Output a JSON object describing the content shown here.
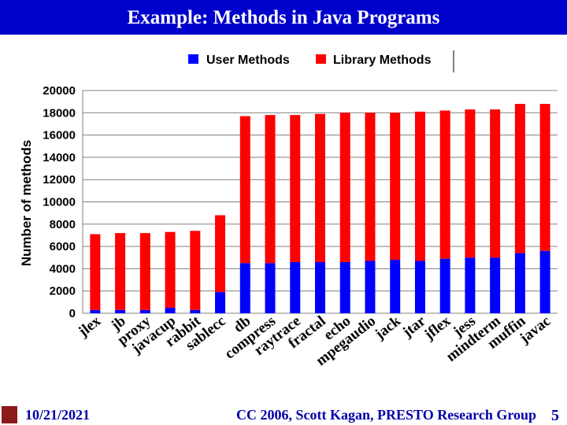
{
  "header": {
    "title": "Example: Methods in Java Programs"
  },
  "footer": {
    "date": "10/21/2021",
    "credit": "CC 2006, Scott Kagan, PRESTO Research Group",
    "page": "5"
  },
  "colors": {
    "title_bg": "#0000cc",
    "user": "#0000ff",
    "library": "#ff0000",
    "footer_text": "#0000aa"
  },
  "chart_data": {
    "type": "bar",
    "stacked": true,
    "title": "",
    "xlabel": "",
    "ylabel": "Number of methods",
    "ylim": [
      0,
      20000
    ],
    "yticks": [
      0,
      2000,
      4000,
      6000,
      8000,
      10000,
      12000,
      14000,
      16000,
      18000,
      20000
    ],
    "ytick_labels": [
      "0",
      "2000",
      "4000",
      "6000",
      "8000",
      "10000",
      "12000",
      "14000",
      "16000",
      "18000",
      "20000"
    ],
    "legend": {
      "position": "top",
      "entries": [
        "User Methods",
        "Library Methods"
      ]
    },
    "grid": true,
    "categories": [
      "jlex",
      "jb",
      "proxy",
      "javacup",
      "rabbit",
      "sablecc",
      "db",
      "compress",
      "raytrace",
      "fractal",
      "echo",
      "mpegaudio",
      "jack",
      "jtar",
      "jflex",
      "jess",
      "mindterm",
      "muffin",
      "javac"
    ],
    "series": [
      {
        "name": "User Methods",
        "values": [
          300,
          300,
          300,
          500,
          300,
          1900,
          4500,
          4500,
          4600,
          4600,
          4600,
          4700,
          4800,
          4700,
          4900,
          5000,
          5000,
          5400,
          5600
        ]
      },
      {
        "name": "Library Methods",
        "values": [
          6800,
          6900,
          6900,
          6800,
          7100,
          6900,
          13200,
          13300,
          13200,
          13300,
          13400,
          13300,
          13200,
          13400,
          13300,
          13300,
          13300,
          13400,
          13200
        ]
      }
    ]
  }
}
